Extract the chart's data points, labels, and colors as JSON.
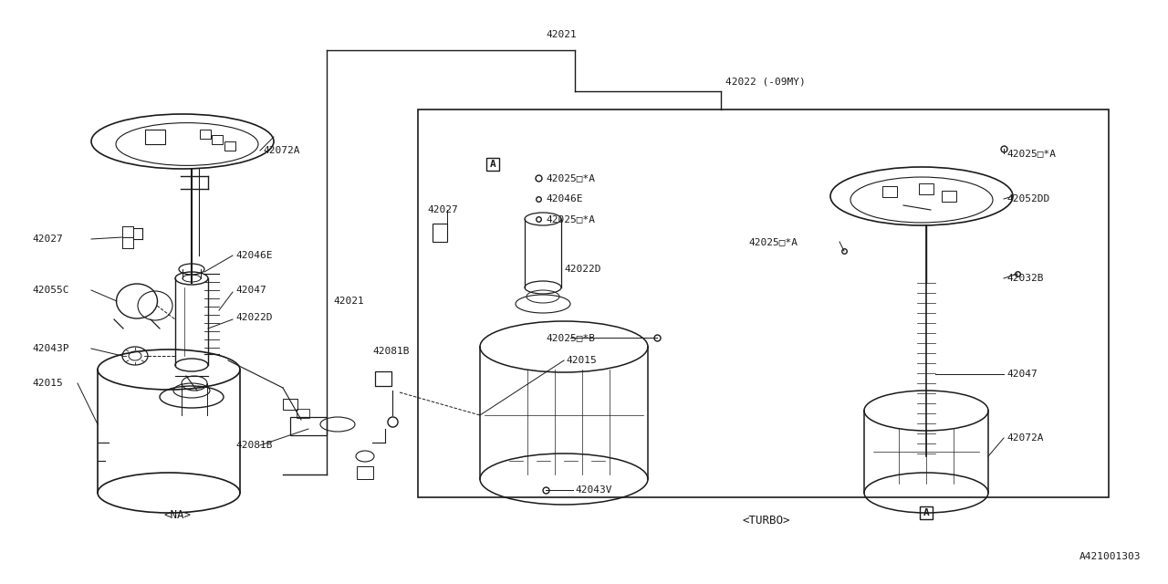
{
  "bg_color": "#ffffff",
  "line_color": "#1a1a1a",
  "text_color": "#1a1a1a",
  "font_family": "monospace",
  "label_fontsize": 8.0,
  "na_label": "<NA>",
  "turbo_label": "<TURBO>",
  "ref_label": "A421001303",
  "figsize": [
    12.8,
    6.4
  ],
  "dpi": 100
}
